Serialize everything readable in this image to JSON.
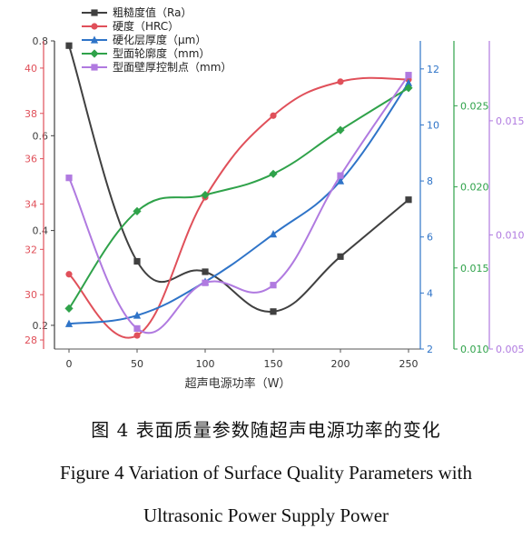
{
  "chart_data": {
    "type": "line",
    "x": [
      0,
      50,
      100,
      150,
      200,
      250
    ],
    "xlabel": "超声电源功率（W）",
    "x_ticks": [
      "0",
      "50",
      "100",
      "150",
      "200",
      "250"
    ],
    "series": [
      {
        "name": "粗糙度值（Ra）",
        "color": "#404040",
        "marker": "square",
        "axis": "ra",
        "values": [
          0.79,
          0.335,
          0.313,
          0.229,
          0.345,
          0.465
        ]
      },
      {
        "name": "硬度（HRC）",
        "color": "#e0505a",
        "marker": "circle",
        "axis": "hrc",
        "values": [
          30.9,
          28.2,
          34.3,
          37.9,
          39.4,
          39.5
        ]
      },
      {
        "name": "硬化层厚度（μm）",
        "color": "#2f74c8",
        "marker": "triangle",
        "axis": "layer",
        "values": [
          2.9,
          3.2,
          4.4,
          6.1,
          8.0,
          11.5
        ]
      },
      {
        "name": "型面轮廓度（mm）",
        "color": "#2fa24a",
        "marker": "diamond",
        "axis": "profile",
        "values": [
          0.0125,
          0.0185,
          0.0195,
          0.0208,
          0.0235,
          0.0261
        ]
      },
      {
        "name": "型面壁厚控制点（mm）",
        "color": "#b07ae0",
        "marker": "square",
        "axis": "wall",
        "values": [
          0.0125,
          0.0059,
          0.0079,
          0.0078,
          0.0126,
          0.017
        ]
      }
    ],
    "axes": {
      "ra": {
        "range": [
          0.15,
          0.8
        ],
        "ticks": [
          "0.8",
          "0.6",
          "0.4",
          "0.2"
        ],
        "tick_values": [
          0.8,
          0.6,
          0.4,
          0.2
        ],
        "color": "#404040",
        "side": "left"
      },
      "hrc": {
        "range": [
          27.6,
          41.2
        ],
        "ticks": [
          "40",
          "38",
          "36",
          "34",
          "32",
          "30",
          "28"
        ],
        "tick_values": [
          40,
          38,
          36,
          34,
          32,
          30,
          28
        ],
        "color": "#e0505a",
        "side": "left"
      },
      "layer": {
        "range": [
          2,
          13
        ],
        "ticks": [
          "12",
          "10",
          "8",
          "6",
          "4",
          "2"
        ],
        "tick_values": [
          12,
          10,
          8,
          6,
          4,
          2
        ],
        "color": "#2f74c8",
        "side": "right"
      },
      "profile": {
        "range": [
          0.01,
          0.029
        ],
        "ticks": [
          "0.025",
          "0.020",
          "0.015",
          "0.010"
        ],
        "tick_values": [
          0.025,
          0.02,
          0.015,
          0.01
        ],
        "color": "#2fa24a",
        "side": "right"
      },
      "wall": {
        "range": [
          0.005,
          0.0185
        ],
        "ticks": [
          "0.015",
          "0.010",
          "0.005"
        ],
        "tick_values": [
          0.015,
          0.01,
          0.005
        ],
        "color": "#b07ae0",
        "side": "right"
      }
    },
    "grid": false,
    "legend": "top-left"
  },
  "caption": {
    "cn": "图 4  表面质量参数随超声电源功率的变化",
    "en_line1": "Figure 4 Variation of Surface Quality Parameters with",
    "en_line2": "Ultrasonic Power Supply Power"
  }
}
